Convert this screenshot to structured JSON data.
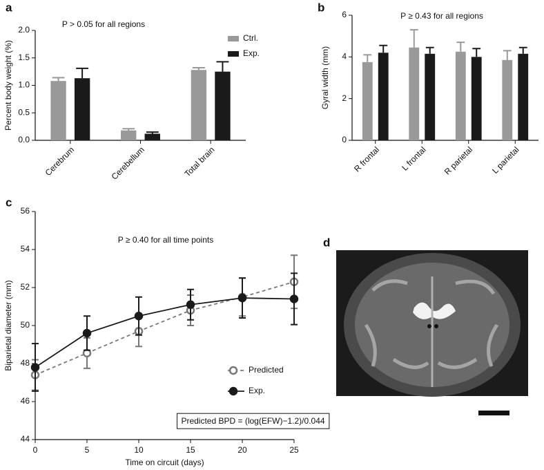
{
  "chart_data": [
    {
      "type": "bar",
      "panel": "a",
      "annotation": "P > 0.05 for all regions",
      "ylabel": "Percent body weight (%)",
      "categories": [
        "Cerebrum",
        "Cerebellum",
        "Total brain"
      ],
      "series": [
        {
          "name": "Ctrl.",
          "color": "#999999",
          "values": [
            1.08,
            0.18,
            1.28
          ],
          "errors": [
            0.06,
            0.03,
            0.04
          ]
        },
        {
          "name": "Exp.",
          "color": "#1a1a1a",
          "values": [
            1.13,
            0.12,
            1.25
          ],
          "errors": [
            0.18,
            0.03,
            0.18
          ]
        }
      ],
      "ylim": [
        0,
        2
      ],
      "yticks": [
        {
          "value": 0,
          "label": "0.0"
        },
        {
          "value": 0.5,
          "label": "0.5"
        },
        {
          "value": 1,
          "label": "1.0"
        },
        {
          "value": 1.5,
          "label": "1.5"
        },
        {
          "value": 2,
          "label": "2.0"
        }
      ],
      "legend": "upper right"
    },
    {
      "type": "bar",
      "panel": "b",
      "annotation": "P ≥ 0.43 for all regions",
      "ylabel": "Gyral width (mm)",
      "categories": [
        "R frontal",
        "L frontal",
        "R parietal",
        "L parietal"
      ],
      "series": [
        {
          "color": "#999999",
          "values": [
            3.75,
            4.45,
            4.25,
            3.85
          ],
          "errors": [
            0.35,
            0.85,
            0.45,
            0.45
          ]
        },
        {
          "color": "#1a1a1a",
          "values": [
            4.2,
            4.15,
            4.0,
            4.15
          ],
          "errors": [
            0.35,
            0.3,
            0.4,
            0.3
          ]
        }
      ],
      "ylim": [
        0,
        6
      ],
      "yticks": [
        0,
        2,
        4,
        6
      ]
    },
    {
      "type": "line",
      "panel": "c",
      "annotation": "P ≥ 0.40 for all time points",
      "equation_box": "Predicted BPD = (log(EFW)−1.2)/0.044",
      "xlabel": "Time on circuit (days)",
      "ylabel": "Biparietal diameter (mm)",
      "x": [
        0,
        5,
        10,
        15,
        20,
        25
      ],
      "series": [
        {
          "name": "Predicted",
          "color": "#777777",
          "line_style": "dashed",
          "marker": "open",
          "values": [
            47.4,
            48.55,
            49.7,
            50.8,
            51.5,
            52.3
          ],
          "errors": [
            0.8,
            0.8,
            0.8,
            0.8,
            1.0,
            1.4
          ]
        },
        {
          "name": "Exp.",
          "color": "#1a1a1a",
          "line_style": "solid",
          "marker": "filled",
          "values": [
            47.8,
            49.6,
            50.5,
            51.1,
            51.45,
            51.4
          ],
          "errors": [
            1.25,
            0.9,
            1.0,
            0.8,
            1.05,
            1.35
          ]
        }
      ],
      "xlim": [
        0,
        25
      ],
      "xticks": [
        0,
        5,
        10,
        15,
        20,
        25
      ],
      "ylim": [
        44,
        56
      ],
      "yticks": [
        44,
        46,
        48,
        50,
        52,
        54,
        56
      ],
      "legend": "lower right"
    }
  ],
  "image_panel": {
    "panel": "d"
  }
}
